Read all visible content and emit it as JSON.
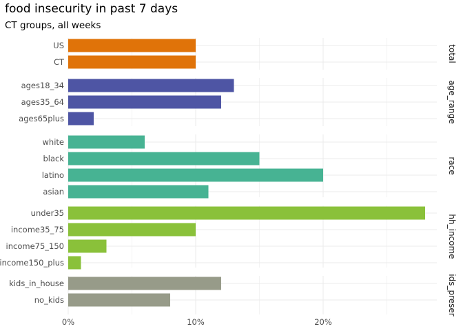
{
  "title": "food insecurity in past 7 days",
  "subtitle": "CT groups, all weeks",
  "chart_data": {
    "type": "bar",
    "orientation": "horizontal",
    "xlim": [
      0,
      0.29
    ],
    "x_ticks": [
      {
        "value": 0,
        "label": "0%"
      },
      {
        "value": 0.1,
        "label": "10%"
      },
      {
        "value": 0.2,
        "label": "20%"
      }
    ],
    "grid": true,
    "facets": [
      {
        "strip": "total",
        "color": "#E07309",
        "bars": [
          {
            "label": "US",
            "value": 0.1
          },
          {
            "label": "CT",
            "value": 0.1
          }
        ]
      },
      {
        "strip": "age_range",
        "color": "#4E55A4",
        "bars": [
          {
            "label": "ages18_34",
            "value": 0.13
          },
          {
            "label": "ages35_64",
            "value": 0.12
          },
          {
            "label": "ages65plus",
            "value": 0.02
          }
        ]
      },
      {
        "strip": "race",
        "color": "#47B393",
        "bars": [
          {
            "label": "white",
            "value": 0.06
          },
          {
            "label": "black",
            "value": 0.15
          },
          {
            "label": "latino",
            "value": 0.2
          },
          {
            "label": "asian",
            "value": 0.11
          }
        ]
      },
      {
        "strip": "hh_income",
        "color": "#8AC13A",
        "bars": [
          {
            "label": "under35",
            "value": 0.28
          },
          {
            "label": "income35_75",
            "value": 0.1
          },
          {
            "label": "income75_150",
            "value": 0.03
          },
          {
            "label": "income150_plus",
            "value": 0.01
          }
        ]
      },
      {
        "strip": "ids_preser",
        "color": "#979B89",
        "bars": [
          {
            "label": "kids_in_house",
            "value": 0.12
          },
          {
            "label": "no_kids",
            "value": 0.08
          }
        ]
      }
    ]
  }
}
